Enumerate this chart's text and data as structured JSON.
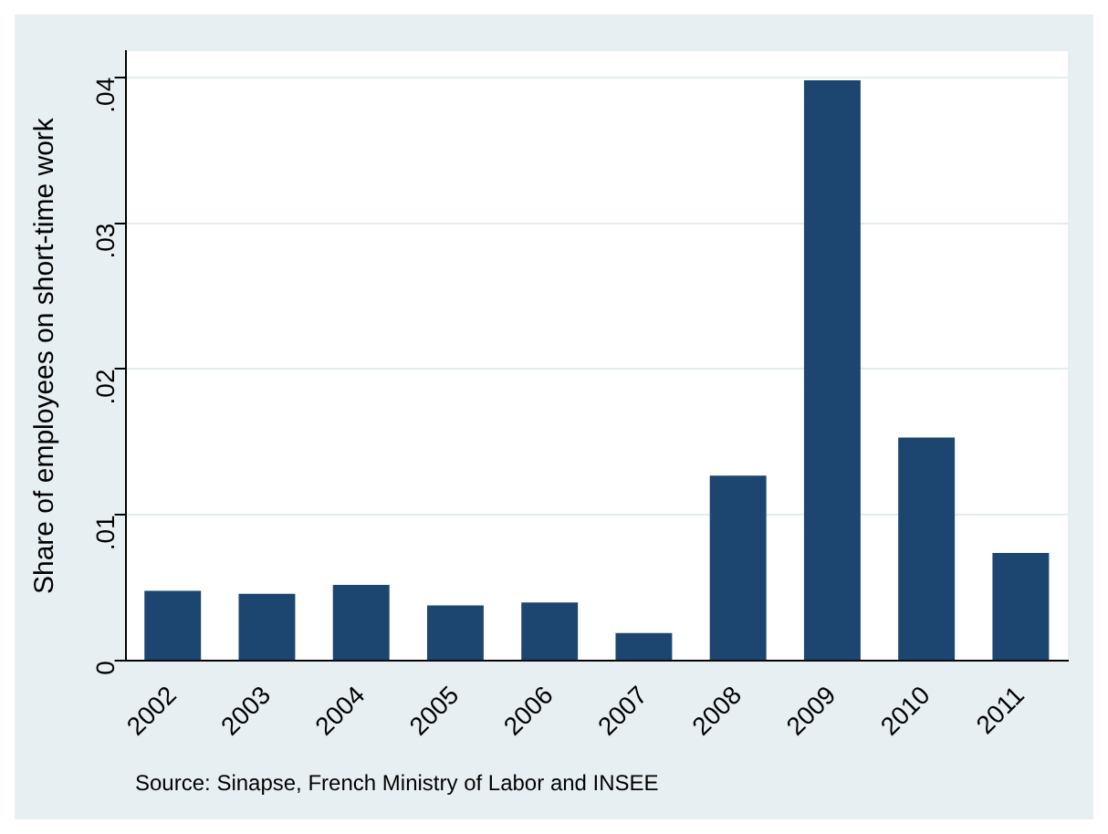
{
  "chart_data": {
    "type": "bar",
    "ylabel": "Share of employees on short-time work",
    "categories": [
      "2002",
      "2003",
      "2004",
      "2005",
      "2006",
      "2007",
      "2008",
      "2009",
      "2010",
      "2011"
    ],
    "values": [
      0.0048,
      0.0046,
      0.0052,
      0.0038,
      0.004,
      0.0019,
      0.0127,
      0.0398,
      0.0153,
      0.0074
    ],
    "color": "#1c4670",
    "ylim": [
      0,
      0.0418
    ],
    "yticks": [
      0,
      {
        "value": 0.01,
        "label": ".01"
      },
      {
        "value": 0.02,
        "label": ".02"
      },
      {
        "value": 0.03,
        "label": ".03"
      },
      {
        "value": 0.04,
        "label": ".04"
      }
    ],
    "grid": "y",
    "annotations": [
      "Source: Sinapse, French Ministry of Labor and INSEE"
    ]
  }
}
